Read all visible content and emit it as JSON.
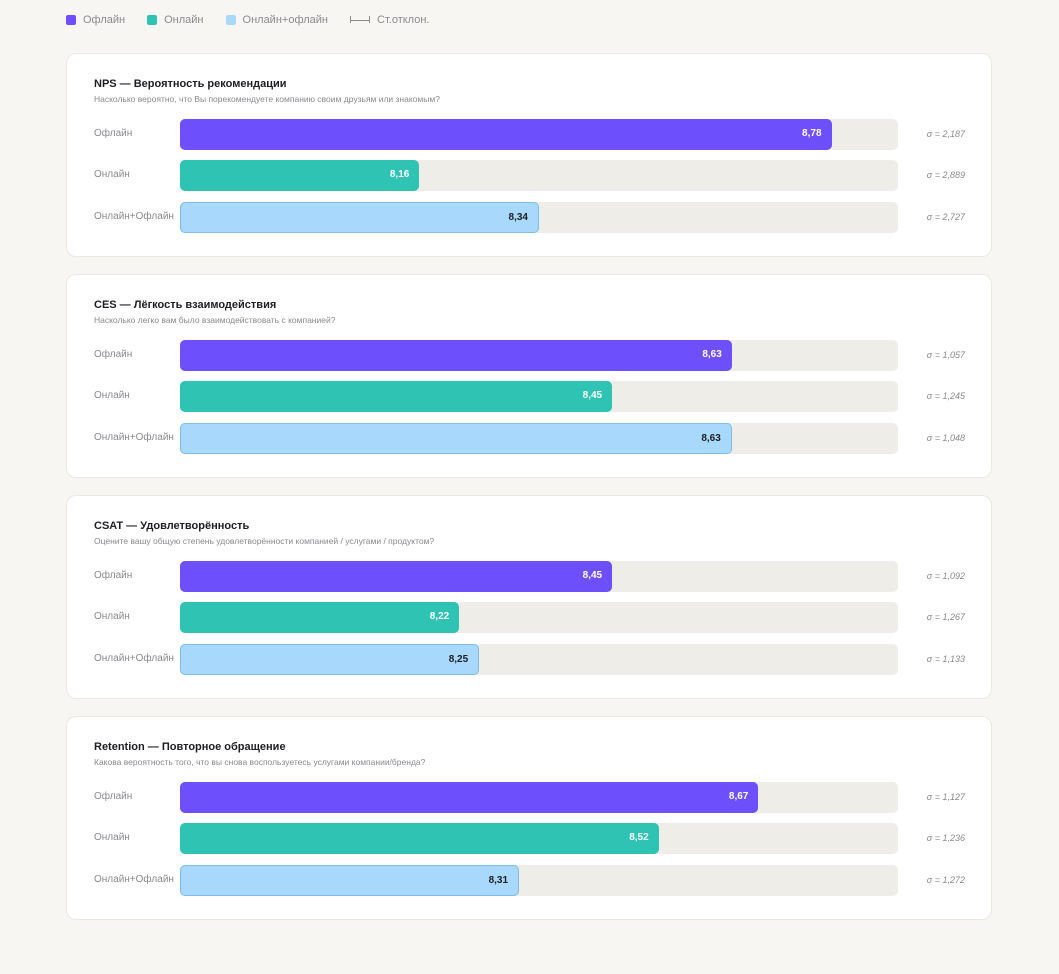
{
  "legend": {
    "offline": "Офлайн",
    "online": "Онлайн",
    "both": "Онлайн+офлайн",
    "sd": "Ст.отклон."
  },
  "colors": {
    "offline": "#6d4ffc",
    "online": "#2fc3b4",
    "both": "#a8d8fb",
    "both_border": "#7fbde8",
    "track": "#efede8"
  },
  "chart_data": [
    {
      "type": "bar",
      "orientation": "horizontal",
      "title": "NPS — Вероятность рекомендации",
      "subtitle": "Насколько вероятно, что Вы порекомендуете компанию своим друзьям или знакомым?",
      "categories": [
        "Офлайн",
        "Онлайн",
        "Онлайн+Офлайн"
      ],
      "values": [
        8.78,
        8.16,
        8.34
      ],
      "value_labels": [
        "8,78",
        "8,16",
        "8,34"
      ],
      "sd_labels": [
        "σ = 2,187",
        "σ = 2,889",
        "σ = 2,727"
      ],
      "sd": [
        2.187,
        2.889,
        2.727
      ],
      "xlim": [
        7.8,
        8.88
      ]
    },
    {
      "type": "bar",
      "orientation": "horizontal",
      "title": "CES — Лёгкость взаимодействия",
      "subtitle": "Насколько легко вам было взаимодействовать с компанией?",
      "categories": [
        "Офлайн",
        "Онлайн",
        "Онлайн+Офлайн"
      ],
      "values": [
        8.63,
        8.45,
        8.63
      ],
      "value_labels": [
        "8,63",
        "8,45",
        "8,63"
      ],
      "sd_labels": [
        "σ = 1,057",
        "σ = 1,245",
        "σ = 1,048"
      ],
      "sd": [
        1.057,
        1.245,
        1.048
      ],
      "xlim": [
        7.8,
        8.88
      ]
    },
    {
      "type": "bar",
      "orientation": "horizontal",
      "title": "CSAT — Удовлетворённость",
      "subtitle": "Оцените вашу общую степень удовлетворённости компанией / услугами / продуктом?",
      "categories": [
        "Офлайн",
        "Онлайн",
        "Онлайн+Офлайн"
      ],
      "values": [
        8.45,
        8.22,
        8.25
      ],
      "value_labels": [
        "8,45",
        "8,22",
        "8,25"
      ],
      "sd_labels": [
        "σ = 1,092",
        "σ = 1,267",
        "σ = 1,133"
      ],
      "sd": [
        1.092,
        1.267,
        1.133
      ],
      "xlim": [
        7.8,
        8.88
      ]
    },
    {
      "type": "bar",
      "orientation": "horizontal",
      "title": "Retention — Повторное обращение",
      "subtitle": "Какова вероятность того, что вы снова воспользуетесь услугами компании/бренда?",
      "categories": [
        "Офлайн",
        "Онлайн",
        "Онлайн+Офлайн"
      ],
      "values": [
        8.67,
        8.52,
        8.31
      ],
      "value_labels": [
        "8,67",
        "8,52",
        "8,31"
      ],
      "sd_labels": [
        "σ = 1,127",
        "σ = 1,236",
        "σ = 1,272"
      ],
      "sd": [
        1.127,
        1.236,
        1.272
      ],
      "xlim": [
        7.8,
        8.88
      ]
    }
  ]
}
